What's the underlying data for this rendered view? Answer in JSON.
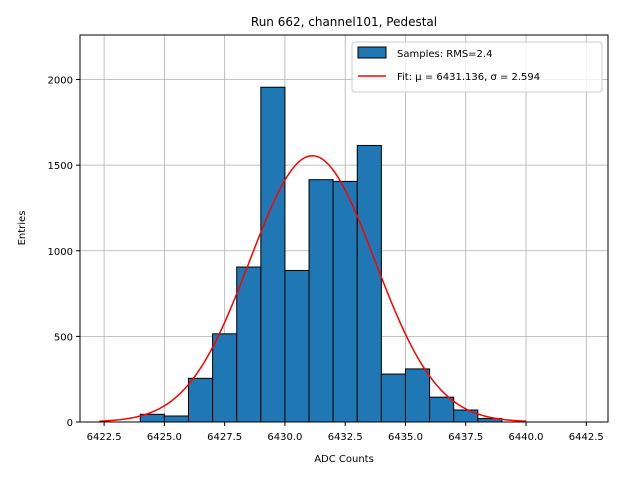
{
  "chart_data": {
    "type": "histogram",
    "title": "Run 662, channel101, Pedestal",
    "xlabel": "ADC Counts",
    "ylabel": "Entries",
    "xlim": [
      6421.5,
      6443.4
    ],
    "ylim": [
      0,
      2260
    ],
    "grid": true,
    "legend_position": "top-right",
    "bin_width": 1,
    "bins": [
      {
        "x0": 6424,
        "x1": 6425,
        "value": 45
      },
      {
        "x0": 6425,
        "x1": 6426,
        "value": 35
      },
      {
        "x0": 6426,
        "x1": 6427,
        "value": 255
      },
      {
        "x0": 6427,
        "x1": 6428,
        "value": 515
      },
      {
        "x0": 6428,
        "x1": 6429,
        "value": 905
      },
      {
        "x0": 6429,
        "x1": 6430,
        "value": 1955
      },
      {
        "x0": 6430,
        "x1": 6431,
        "value": 885
      },
      {
        "x0": 6431,
        "x1": 6432,
        "value": 1415
      },
      {
        "x0": 6432,
        "x1": 6433,
        "value": 1405
      },
      {
        "x0": 6433,
        "x1": 6434,
        "value": 1615
      },
      {
        "x0": 6434,
        "x1": 6435,
        "value": 280
      },
      {
        "x0": 6435,
        "x1": 6436,
        "value": 310
      },
      {
        "x0": 6436,
        "x1": 6437,
        "value": 145
      },
      {
        "x0": 6437,
        "x1": 6438,
        "value": 70
      },
      {
        "x0": 6438,
        "x1": 6439,
        "value": 20
      }
    ],
    "fit": {
      "mu": 6431.136,
      "sigma": 2.594,
      "amplitude": 1555,
      "x_range": [
        6422.3,
        6440.0
      ]
    },
    "x_ticks": [
      "6422.5",
      "6425.0",
      "6427.5",
      "6430.0",
      "6432.5",
      "6435.0",
      "6437.5",
      "6440.0",
      "6442.5"
    ],
    "y_ticks": [
      "0",
      "500",
      "1000",
      "1500",
      "2000"
    ],
    "legend": {
      "samples_label": "Samples: RMS=2.4",
      "fit_label": "Fit: μ = 6431.136, σ = 2.594"
    },
    "colors": {
      "bars": "#1f77b4",
      "fit": "#ff0000",
      "grid": "#b0b0b0"
    }
  }
}
